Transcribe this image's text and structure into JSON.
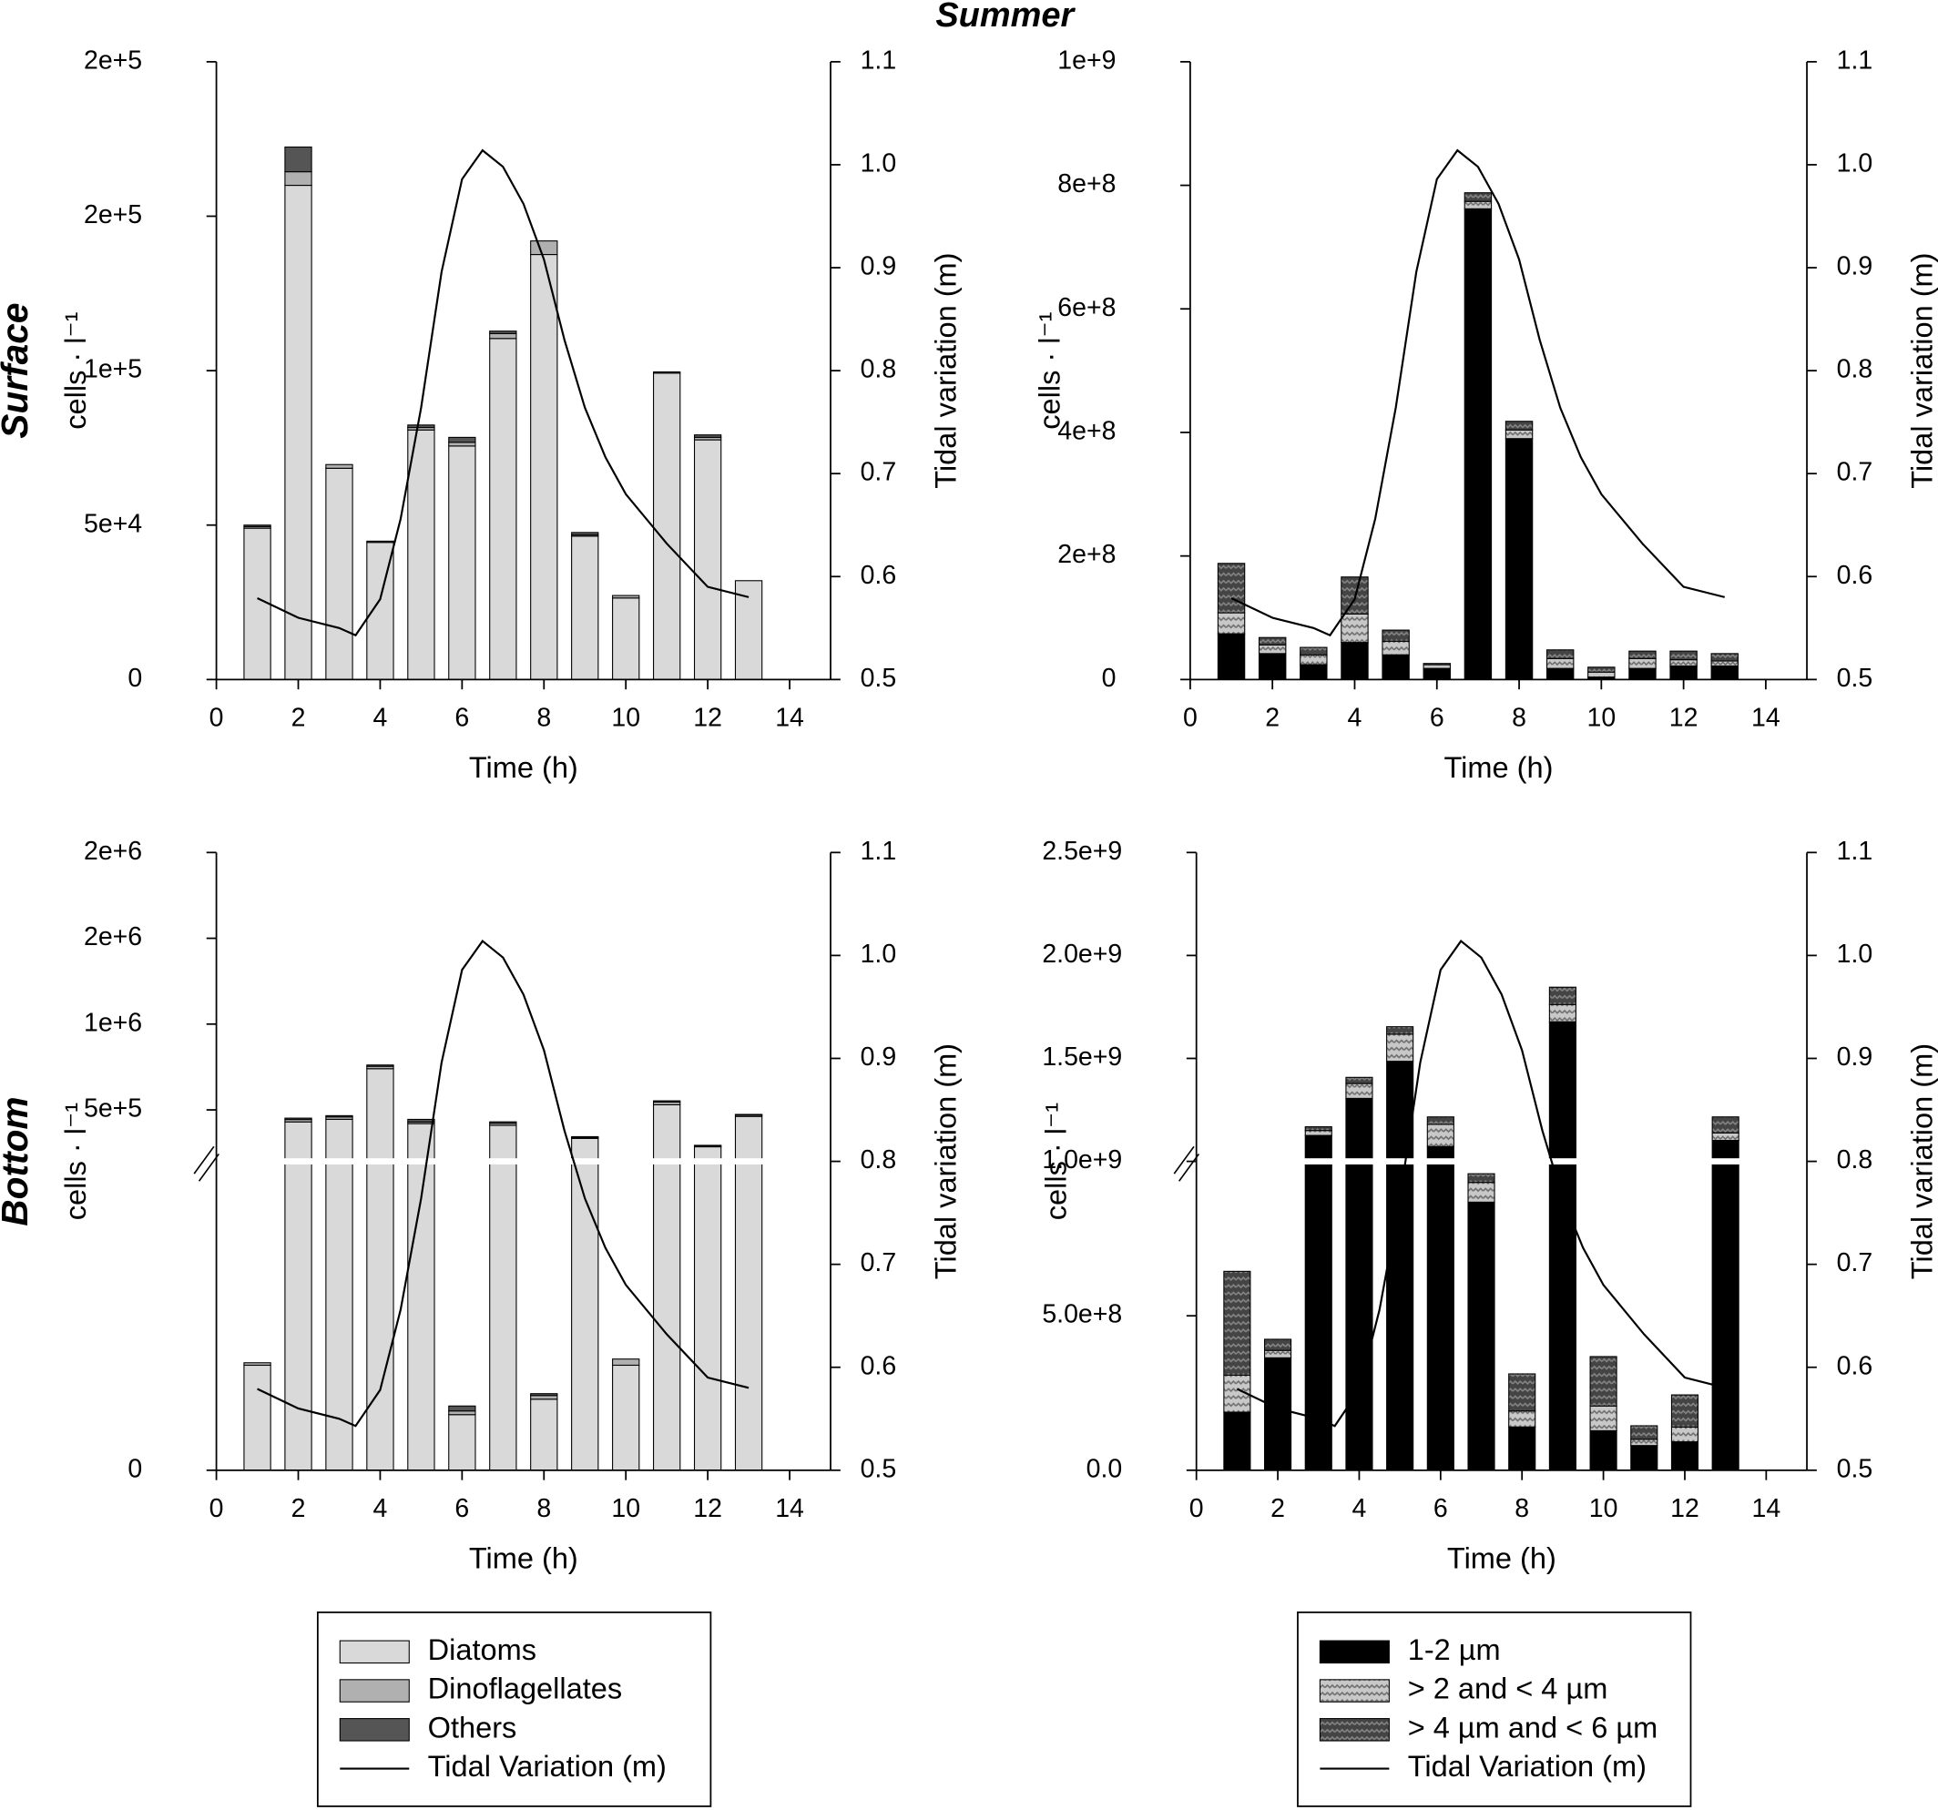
{
  "title": "Summer",
  "row_labels": [
    "Surface",
    "Bottom"
  ],
  "chart_data": [
    {
      "type": "bar",
      "stacked": true,
      "x": [
        1,
        2,
        3,
        4,
        5,
        6,
        7,
        8,
        9,
        10,
        11,
        12,
        13
      ],
      "series": [
        {
          "name": "Diatoms",
          "color": "#d9d9d9",
          "values": [
            49000,
            160000,
            68400,
            44400,
            80800,
            75600,
            110400,
            137600,
            46400,
            26400,
            99200,
            77600,
            32000
          ]
        },
        {
          "name": "Dinoflagellates",
          "color": "#b0b0b0",
          "values": [
            500,
            4400,
            1200,
            0,
            800,
            1200,
            1600,
            4400,
            400,
            800,
            0,
            800,
            0
          ]
        },
        {
          "name": "Others",
          "color": "#555555",
          "values": [
            500,
            8000,
            0,
            400,
            800,
            1600,
            800,
            0,
            800,
            0,
            400,
            800,
            0
          ]
        },
        {
          "name": "Tidal Variation (m)",
          "type": "line",
          "axis": "y2",
          "color": "#000000",
          "x": [
            1,
            2,
            3,
            3.4,
            4,
            4.5,
            5,
            5.5,
            6,
            6.5,
            7,
            7.5,
            8,
            8.5,
            9,
            9.5,
            10,
            11,
            12,
            13
          ],
          "values": [
            0.579,
            0.56,
            0.55,
            0.543,
            0.578,
            0.656,
            0.764,
            0.896,
            0.986,
            1.014,
            0.998,
            0.962,
            0.908,
            0.83,
            0.764,
            0.716,
            0.68,
            0.632,
            0.59,
            0.58
          ]
        }
      ],
      "xlabel": "Time (h)",
      "ylabel": "cells · l⁻¹",
      "y2label": "Tidal variation (m)",
      "xlim": [
        0,
        15
      ],
      "xticks": [
        0,
        2,
        4,
        6,
        8,
        10,
        12,
        14
      ],
      "ylim": [
        0,
        200000
      ],
      "yticks": [
        0,
        {
          "value": 50000,
          "label": "5e+4"
        },
        {
          "value": 100000,
          "label": "1e+5"
        },
        {
          "value": 150000,
          "label": "2e+5"
        },
        {
          "value": 200000,
          "label": "2e+5"
        }
      ],
      "y2lim": [
        0.5,
        1.1
      ],
      "y2ticks": [
        0.5,
        0.6,
        0.7,
        0.8,
        0.9,
        {
          "value": 1,
          "label": "1.0"
        },
        1.1
      ]
    },
    {
      "type": "bar",
      "stacked": true,
      "x": [
        1,
        2,
        3,
        4,
        5,
        6,
        7,
        8,
        9,
        10,
        11,
        12,
        13
      ],
      "series": [
        {
          "name": "1-2 µm",
          "color": "#000000",
          "values": [
            74000000,
            42000000,
            24000000,
            60000000,
            40000000,
            18000000,
            762000000,
            390000000,
            18000000,
            4000000,
            18000000,
            22000000,
            22000000
          ]
        },
        {
          "name": "> 2 and < 4 µm",
          "color": "#c8c8c8",
          "pattern": "zigzag",
          "values": [
            34000000,
            14000000,
            16000000,
            46000000,
            22000000,
            6000000,
            12000000,
            14000000,
            16000000,
            8000000,
            16000000,
            10000000,
            8000000
          ]
        },
        {
          "name": "> 4 µm and < 6 µm",
          "color": "#444444",
          "pattern": "zigzag",
          "values": [
            80000000,
            12000000,
            12000000,
            60000000,
            18000000,
            2000000,
            14000000,
            14000000,
            14000000,
            8000000,
            12000000,
            14000000,
            12000000
          ]
        },
        {
          "name": "Tidal Variation (m)",
          "type": "line",
          "axis": "y2",
          "color": "#000000",
          "x": [
            1,
            2,
            3,
            3.4,
            4,
            4.5,
            5,
            5.5,
            6,
            6.5,
            7,
            7.5,
            8,
            8.5,
            9,
            9.5,
            10,
            11,
            12,
            13
          ],
          "values": [
            0.579,
            0.56,
            0.55,
            0.543,
            0.578,
            0.656,
            0.764,
            0.896,
            0.986,
            1.014,
            0.998,
            0.962,
            0.908,
            0.83,
            0.764,
            0.716,
            0.68,
            0.632,
            0.59,
            0.58
          ]
        }
      ],
      "xlabel": "Time (h)",
      "ylabel": "cells · l⁻¹",
      "y2label": "Tidal variation (m)",
      "xlim": [
        0,
        15
      ],
      "xticks": [
        0,
        2,
        4,
        6,
        8,
        10,
        12,
        14
      ],
      "ylim": [
        0,
        1000000000
      ],
      "yticks": [
        0,
        {
          "value": 200000000,
          "label": "2e+8"
        },
        {
          "value": 400000000,
          "label": "4e+8"
        },
        {
          "value": 600000000,
          "label": "6e+8"
        },
        {
          "value": 800000000,
          "label": "8e+8"
        },
        {
          "value": 1000000000,
          "label": "1e+9"
        }
      ],
      "y2lim": [
        0.5,
        1.1
      ],
      "y2ticks": [
        0.5,
        0.6,
        0.7,
        0.8,
        0.9,
        {
          "value": 1,
          "label": "1.0"
        },
        1.1
      ]
    },
    {
      "type": "bar",
      "stacked": true,
      "x": [
        1,
        2,
        3,
        4,
        5,
        6,
        7,
        8,
        9,
        10,
        11,
        12,
        13
      ],
      "series": [
        {
          "name": "Diatoms",
          "color": "#d9d9d9",
          "values": [
            68000,
            430000,
            445000,
            740000,
            420000,
            36000,
            410000,
            46000,
            334000,
            68000,
            530000,
            285000,
            462000
          ]
        },
        {
          "name": "Dinoflagellates",
          "color": "#b0b0b0",
          "values": [
            1600,
            14000,
            14000,
            14000,
            10000,
            2400,
            12000,
            2400,
            4000,
            4000,
            16000,
            5000,
            8000
          ]
        },
        {
          "name": "Others",
          "color": "#555555",
          "values": [
            0,
            8000,
            7400,
            7600,
            14800,
            3200,
            8400,
            1200,
            6000,
            0,
            6800,
            3600,
            3600
          ]
        },
        {
          "name": "Tidal Variation (m)",
          "type": "line",
          "axis": "y2",
          "color": "#000000",
          "x": [
            1,
            2,
            3,
            3.4,
            4,
            4.5,
            5,
            5.5,
            6,
            6.5,
            7,
            7.5,
            8,
            8.5,
            9,
            9.5,
            10,
            11,
            12,
            13
          ],
          "values": [
            0.579,
            0.56,
            0.55,
            0.543,
            0.578,
            0.656,
            0.764,
            0.896,
            0.986,
            1.014,
            0.998,
            0.962,
            0.908,
            0.83,
            0.764,
            0.716,
            0.68,
            0.632,
            0.59,
            0.58
          ]
        }
      ],
      "xlabel": "Time (h)",
      "ylabel": "cells · l⁻¹",
      "y2label": "Tidal variation (m)",
      "xlim": [
        0,
        15
      ],
      "xticks": [
        0,
        2,
        4,
        6,
        8,
        10,
        12,
        14
      ],
      "ylim": [
        0,
        2000000
      ],
      "ybreak": 200000,
      "yticks": [
        0,
        {
          "value": 500000,
          "label": "5e+5"
        },
        {
          "value": 1000000,
          "label": "1e+6"
        },
        {
          "value": 1500000,
          "label": "2e+6"
        },
        {
          "value": 2000000,
          "label": "2e+6"
        }
      ],
      "y2lim": [
        0.5,
        1.1
      ],
      "y2ticks": [
        0.5,
        0.6,
        0.7,
        0.8,
        0.9,
        {
          "value": 1,
          "label": "1.0"
        },
        1.1
      ],
      "legend": "bottom"
    },
    {
      "type": "bar",
      "stacked": true,
      "x": [
        1,
        2,
        3,
        4,
        5,
        6,
        7,
        8,
        9,
        10,
        11,
        12,
        13
      ],
      "series": [
        {
          "name": "1-2 µm",
          "color": "#000000",
          "values": [
            188000000,
            364000000,
            1126000000,
            1306000000,
            1486000000,
            1072000000,
            868000000,
            140000000,
            1678000000,
            128000000,
            80000000,
            92000000,
            1102000000
          ]
        },
        {
          "name": "> 2 and < 4 µm",
          "color": "#c8c8c8",
          "pattern": "zigzag",
          "values": [
            120000000,
            24000000,
            24000000,
            72000000,
            132000000,
            108000000,
            64000000,
            52000000,
            84000000,
            80000000,
            20000000,
            48000000,
            36000000
          ]
        },
        {
          "name": "> 4 µm and < 6 µm",
          "color": "#444444",
          "pattern": "zigzag",
          "values": [
            336000000,
            36000000,
            18000000,
            30000000,
            36000000,
            36000000,
            28000000,
            120000000,
            84000000,
            160000000,
            44000000,
            104000000,
            78000000
          ]
        },
        {
          "name": "Tidal Variation (m)",
          "type": "line",
          "axis": "y2",
          "color": "#000000",
          "x": [
            1,
            2,
            3,
            3.4,
            4,
            4.5,
            5,
            5.5,
            6,
            6.5,
            7,
            7.5,
            8,
            8.5,
            9,
            9.5,
            10,
            11,
            12,
            13
          ],
          "values": [
            0.579,
            0.56,
            0.55,
            0.543,
            0.578,
            0.656,
            0.764,
            0.896,
            0.986,
            1.014,
            0.998,
            0.962,
            0.908,
            0.83,
            0.764,
            0.716,
            0.68,
            0.632,
            0.59,
            0.58
          ]
        }
      ],
      "xlabel": "Time (h)",
      "ylabel": "cells · l⁻¹",
      "y2label": "Tidal variation (m)",
      "xlim": [
        0,
        15
      ],
      "xticks": [
        0,
        2,
        4,
        6,
        8,
        10,
        12,
        14
      ],
      "ylim": [
        0,
        2500000000
      ],
      "ybreak": 1000000000,
      "yticks": [
        {
          "value": 0,
          "label": "0.0"
        },
        {
          "value": 500000000,
          "label": "5.0e+8"
        },
        {
          "value": 1000000000,
          "label": "1.0e+9"
        },
        {
          "value": 1500000000,
          "label": "1.5e+9"
        },
        {
          "value": 2000000000,
          "label": "2.0e+9"
        },
        {
          "value": 2500000000,
          "label": "2.5e+9"
        }
      ],
      "y2lim": [
        0.5,
        1.1
      ],
      "y2ticks": [
        0.5,
        0.6,
        0.7,
        0.8,
        0.9,
        {
          "value": 1,
          "label": "1.0"
        },
        1.1
      ],
      "legend": "bottom"
    }
  ]
}
